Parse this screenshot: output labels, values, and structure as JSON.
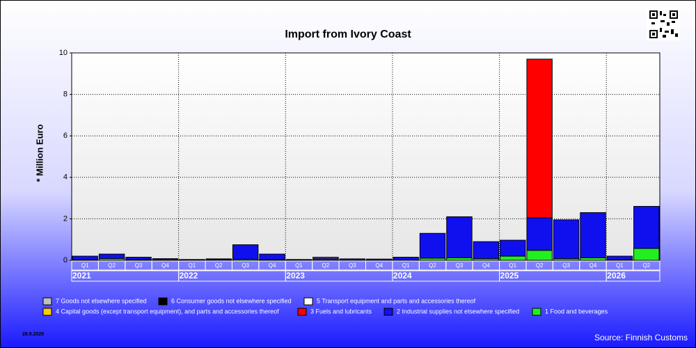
{
  "chart_data": {
    "type": "stacked-bar",
    "title": "Import from Ivory Coast",
    "y_label": "* Million Euro",
    "categories": [
      "Q1",
      "Q2",
      "Q3",
      "Q4",
      "Q1",
      "Q2",
      "Q3",
      "Q4",
      "Q1",
      "Q2",
      "Q3",
      "Q4",
      "Q1",
      "Q2",
      "Q3",
      "Q4",
      "Q1",
      "Q2",
      "Q3",
      "Q4",
      "Q1",
      "Q2"
    ],
    "years": [
      "2021",
      "2022",
      "2023",
      "2024",
      "2025",
      "2026"
    ],
    "series": [
      {
        "name": "1 Food and beverages",
        "color": "#22ee22",
        "values": [
          0.02,
          0.08,
          0.03,
          0.02,
          0,
          0,
          0.05,
          0.03,
          0,
          0,
          0,
          0,
          0,
          0.1,
          0.12,
          0.08,
          0.2,
          0.48,
          0.08,
          0.12,
          0.03,
          0.57
        ]
      },
      {
        "name": "2 Industrial supplies not elsewhere specified",
        "color": "#1010ee",
        "values": [
          0.18,
          0.22,
          0.12,
          0.06,
          0.04,
          0.05,
          0.7,
          0.27,
          0.04,
          0.1,
          0.07,
          0.06,
          0.15,
          1.2,
          1.98,
          0.82,
          0.77,
          1.57,
          1.87,
          2.18,
          0.17,
          2.03
        ]
      },
      {
        "name": "3 Fuels and lubricants",
        "color": "#ff0000",
        "values": [
          0,
          0,
          0,
          0,
          0,
          0,
          0,
          0,
          0,
          0,
          0,
          0,
          0,
          0,
          0,
          0,
          0,
          7.65,
          0,
          0,
          0,
          0
        ]
      },
      {
        "name": "4 Capital goods (except transport equipment), and parts and accessories thereof",
        "color": "#ffcc00",
        "values": [
          0,
          0,
          0,
          0,
          0,
          0,
          0,
          0,
          0,
          0.05,
          0,
          0,
          0,
          0,
          0,
          0,
          0,
          0,
          0,
          0,
          0,
          0
        ]
      },
      {
        "name": "5  Transport equipment and parts and accessories thereof",
        "color": "#ffffff",
        "values": [
          0,
          0,
          0,
          0,
          0,
          0,
          0,
          0,
          0,
          0,
          0,
          0,
          0,
          0,
          0,
          0,
          0,
          0,
          0,
          0,
          0,
          0
        ]
      },
      {
        "name": "6 Consumer goods not elsewhere specified",
        "color": "#000000",
        "values": [
          0,
          0,
          0,
          0,
          0,
          0.02,
          0,
          0,
          0,
          0,
          0,
          0,
          0,
          0,
          0,
          0,
          0,
          0,
          0,
          0,
          0,
          0
        ]
      },
      {
        "name": "7 Goods not elsewhere specified",
        "color": "#c0c0c0",
        "values": [
          0,
          0,
          0,
          0,
          0,
          0,
          0,
          0,
          0,
          0,
          0,
          0,
          0,
          0,
          0,
          0,
          0,
          0,
          0,
          0,
          0,
          0
        ]
      }
    ],
    "ylim": [
      0,
      10
    ],
    "yticks": [
      0,
      2,
      4,
      6,
      8,
      10
    ],
    "grid": true,
    "date": "28.8.2026",
    "source": "Source: Finnish Customs"
  }
}
